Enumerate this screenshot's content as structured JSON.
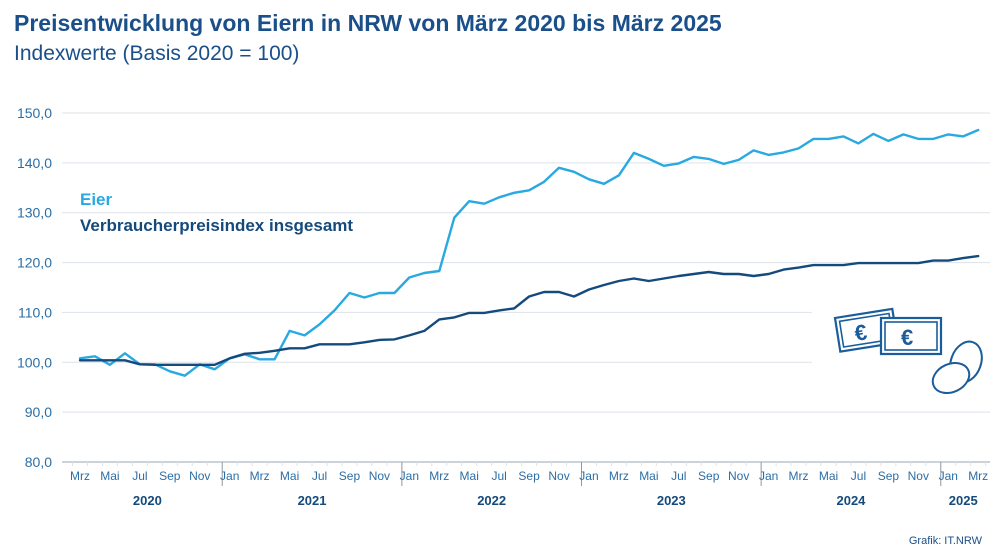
{
  "title": "Preisentwicklung von Eiern in NRW von März 2020 bis März 2025",
  "subtitle": "Indexwerte (Basis 2020 = 100)",
  "source": "Grafik: IT.NRW",
  "colors": {
    "title": "#1a4f8a",
    "eier": "#29a9e1",
    "vpi": "#144a7c",
    "axis_text": "#2b6ea6",
    "grid": "#dde3ea",
    "axis": "#9aa4ad",
    "icon": "#1a5d9c"
  },
  "icons": [
    "euro-banknote-icon",
    "euro-banknote-icon",
    "egg-icon",
    "egg-icon"
  ],
  "chart_data": {
    "type": "line",
    "ylim": [
      80,
      150
    ],
    "yticks": [
      "80,0",
      "90,0",
      "100,0",
      "110,0",
      "120,0",
      "130,0",
      "140,0",
      "150,0"
    ],
    "x": [
      "2020-03",
      "2020-04",
      "2020-05",
      "2020-06",
      "2020-07",
      "2020-08",
      "2020-09",
      "2020-10",
      "2020-11",
      "2020-12",
      "2021-01",
      "2021-02",
      "2021-03",
      "2021-04",
      "2021-05",
      "2021-06",
      "2021-07",
      "2021-08",
      "2021-09",
      "2021-10",
      "2021-11",
      "2021-12",
      "2022-01",
      "2022-02",
      "2022-03",
      "2022-04",
      "2022-05",
      "2022-06",
      "2022-07",
      "2022-08",
      "2022-09",
      "2022-10",
      "2022-11",
      "2022-12",
      "2023-01",
      "2023-02",
      "2023-03",
      "2023-04",
      "2023-05",
      "2023-06",
      "2023-07",
      "2023-08",
      "2023-09",
      "2023-10",
      "2023-11",
      "2023-12",
      "2024-01",
      "2024-02",
      "2024-03",
      "2024-04",
      "2024-05",
      "2024-06",
      "2024-07",
      "2024-08",
      "2024-09",
      "2024-10",
      "2024-11",
      "2024-12",
      "2025-01",
      "2025-02",
      "2025-03"
    ],
    "xtick_labels": [
      "Mrz",
      "Mai",
      "Jul",
      "Sep",
      "Nov",
      "Jan",
      "Mrz",
      "Mai",
      "Jul",
      "Sep",
      "Nov",
      "Jan",
      "Mrz",
      "Mai",
      "Jul",
      "Sep",
      "Nov",
      "Jan",
      "Mrz",
      "Mai",
      "Jul",
      "Sep",
      "Nov",
      "Jan",
      "Mrz",
      "Mai",
      "Jul",
      "Sep",
      "Nov",
      "Jan",
      "Mrz"
    ],
    "years": [
      "2020",
      "2021",
      "2022",
      "2023",
      "2024",
      "2025"
    ],
    "series": [
      {
        "name": "Eier",
        "values": [
          100.8,
          101.2,
          99.5,
          101.8,
          99.6,
          99.6,
          98.2,
          97.3,
          99.6,
          98.6,
          100.8,
          101.6,
          100.6,
          100.6,
          106.3,
          105.4,
          107.6,
          110.4,
          113.9,
          113.0,
          113.9,
          113.9,
          117.0,
          117.9,
          118.3,
          129.0,
          132.3,
          131.8,
          133.1,
          134.0,
          134.5,
          136.2,
          139.0,
          138.2,
          136.7,
          135.8,
          137.5,
          142.0,
          140.8,
          139.4,
          139.9,
          141.2,
          140.8,
          139.8,
          140.6,
          142.5,
          141.6,
          142.1,
          142.9,
          144.8,
          144.8,
          145.3,
          143.9,
          145.8,
          144.4,
          145.7,
          144.8,
          144.8,
          145.7,
          145.3,
          146.6
        ]
      },
      {
        "name": "Verbraucherpreisindex insgesamt",
        "values": [
          100.4,
          100.4,
          100.4,
          100.4,
          99.6,
          99.5,
          99.5,
          99.5,
          99.5,
          99.5,
          100.8,
          101.7,
          101.9,
          102.3,
          102.8,
          102.8,
          103.6,
          103.6,
          103.6,
          104.0,
          104.5,
          104.6,
          105.4,
          106.3,
          108.6,
          109.0,
          109.9,
          109.9,
          110.4,
          110.8,
          113.2,
          114.1,
          114.1,
          113.2,
          114.6,
          115.5,
          116.3,
          116.8,
          116.3,
          116.8,
          117.3,
          117.7,
          118.1,
          117.7,
          117.7,
          117.3,
          117.7,
          118.6,
          119.0,
          119.5,
          119.5,
          119.5,
          119.9,
          119.9,
          119.9,
          119.9,
          119.9,
          120.4,
          120.4,
          120.9,
          121.3
        ]
      }
    ],
    "legend": "top-left",
    "grid": true
  }
}
